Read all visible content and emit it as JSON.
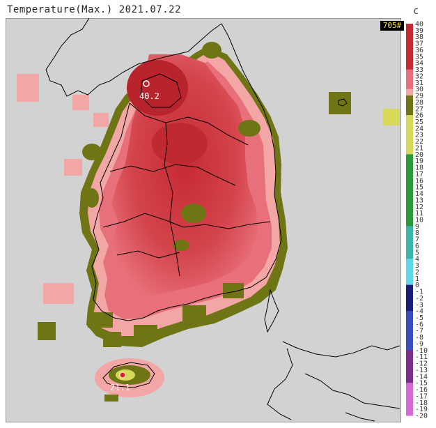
{
  "header": {
    "title": "Temperature(Max.) 2021.07.22",
    "unit": "C",
    "station_count": "705#"
  },
  "markers": {
    "max_label": "40.2",
    "min_label": "21.1"
  },
  "legend": {
    "ticks": [
      "40",
      "39",
      "38",
      "37",
      "36",
      "35",
      "34",
      "33",
      "32",
      "31",
      "30",
      "29",
      "28",
      "27",
      "26",
      "25",
      "24",
      "23",
      "22",
      "21",
      "20",
      "19",
      "18",
      "17",
      "16",
      "15",
      "14",
      "13",
      "12",
      "11",
      "10",
      "9",
      "8",
      "7",
      "6",
      "5",
      "4",
      "3",
      "2",
      "1",
      "0",
      "-1",
      "-2",
      "-3",
      "-4",
      "-5",
      "-6",
      "-7",
      "-8",
      "-9",
      "-10",
      "-11",
      "-12",
      "-13",
      "-14",
      "-15",
      "-16",
      "-17",
      "-18",
      "-19",
      "-20"
    ],
    "colors": {
      "hot": "#c62a33",
      "warm": "#e7707a",
      "light": "#f2a6a6",
      "olive": "#6f7514",
      "yellow": "#d8d95a",
      "green": "#2a9a3a",
      "teal": "#3bb5a8",
      "cyan": "#5ed8e6",
      "navy": "#1a1e78",
      "blue": "#3a4ec0",
      "purple": "#7b2e8a",
      "magenta": "#d56ad6",
      "sea": "#d2d2d2"
    }
  }
}
